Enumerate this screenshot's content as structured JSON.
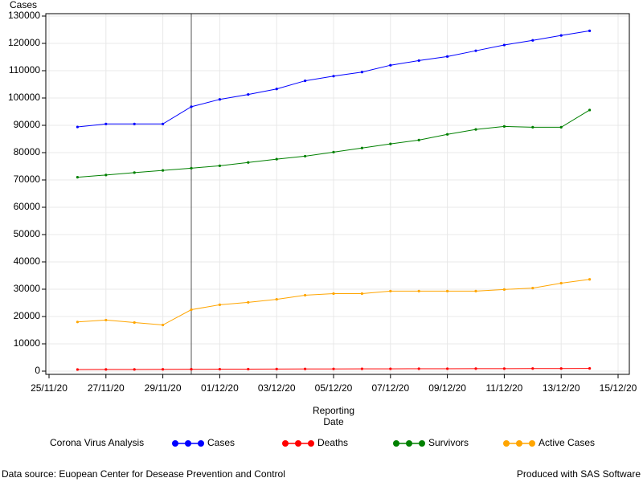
{
  "chart_data": {
    "type": "line",
    "y_label": "Cases",
    "x_label": "Reporting Date",
    "legend_title": "Corona Virus Analysis",
    "legend_position": "bottom",
    "footnote_left": "Data source: Euopean Center for Desease Prevention and Control",
    "footnote_right": "Produced with SAS Software",
    "x": [
      "2020-11-26",
      "2020-11-27",
      "2020-11-28",
      "2020-11-29",
      "2020-11-30",
      "2020-12-01",
      "2020-12-02",
      "2020-12-03",
      "2020-12-04",
      "2020-12-05",
      "2020-12-06",
      "2020-12-07",
      "2020-12-08",
      "2020-12-09",
      "2020-12-10",
      "2020-12-11",
      "2020-12-12",
      "2020-12-13",
      "2020-12-14"
    ],
    "series": [
      {
        "name": "Cases",
        "color": "#0000ff",
        "values": [
          89400,
          90500,
          90500,
          90500,
          96800,
          99500,
          101300,
          103300,
          106300,
          108000,
          109500,
          112000,
          113700,
          115200,
          117300,
          119400,
          121100,
          122900,
          124600
        ]
      },
      {
        "name": "Deaths",
        "color": "#ff0000",
        "values": [
          600,
          620,
          640,
          660,
          690,
          720,
          750,
          780,
          800,
          820,
          840,
          860,
          880,
          900,
          910,
          930,
          950,
          970,
          990
        ]
      },
      {
        "name": "Survivors",
        "color": "#008000",
        "values": [
          71000,
          71800,
          72700,
          73500,
          74300,
          75200,
          76400,
          77600,
          78700,
          80200,
          81700,
          83200,
          84600,
          86700,
          88500,
          89600,
          89300,
          89300,
          95600
        ]
      },
      {
        "name": "Active Cases",
        "color": "#ffa500",
        "values": [
          18000,
          18700,
          17800,
          16900,
          22500,
          24300,
          25200,
          26300,
          27800,
          28400,
          28400,
          29300,
          29300,
          29300,
          29300,
          29900,
          30400,
          32200,
          33600
        ]
      }
    ],
    "xlim": [
      "2020-11-25",
      "2020-12-15"
    ],
    "xticks": [
      {
        "value": "2020-11-25",
        "label": "25/11/20"
      },
      {
        "value": "2020-11-27",
        "label": "27/11/20"
      },
      {
        "value": "2020-11-29",
        "label": "29/11/20"
      },
      {
        "value": "2020-12-01",
        "label": "01/12/20"
      },
      {
        "value": "2020-12-03",
        "label": "03/12/20"
      },
      {
        "value": "2020-12-05",
        "label": "05/12/20"
      },
      {
        "value": "2020-12-07",
        "label": "07/12/20"
      },
      {
        "value": "2020-12-09",
        "label": "09/12/20"
      },
      {
        "value": "2020-12-11",
        "label": "11/12/20"
      },
      {
        "value": "2020-12-13",
        "label": "13/12/20"
      },
      {
        "value": "2020-12-15",
        "label": "15/12/20"
      }
    ],
    "ylim": [
      0,
      130000
    ],
    "yticks": [
      0,
      10000,
      20000,
      30000,
      40000,
      50000,
      60000,
      70000,
      80000,
      90000,
      100000,
      110000,
      120000,
      130000
    ],
    "reference_line_x": "2020-11-30",
    "grid": true
  }
}
